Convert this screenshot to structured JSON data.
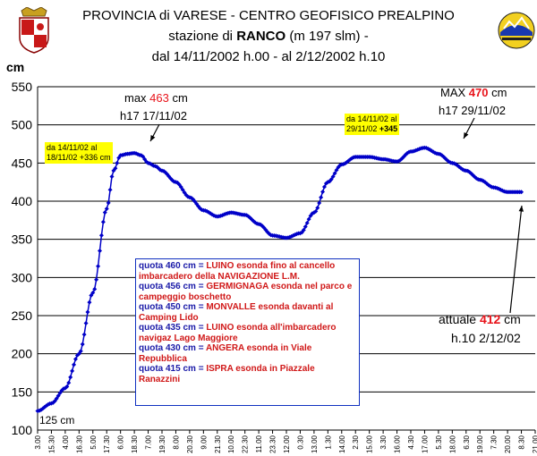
{
  "header": {
    "line1": "PROVINCIA di VARESE   -   CENTRO GEOFISICO PREALPINO",
    "line2_pre": "stazione di ",
    "line2_station": "RANCO",
    "line2_post": " (m 197 slm) -",
    "line3": "dal 14/11/2002 h.00 - al 2/12/2002 h.10"
  },
  "chart_data": {
    "type": "line",
    "ylabel": "cm",
    "ylim": [
      100,
      550
    ],
    "yticks": [
      100,
      150,
      200,
      250,
      300,
      350,
      400,
      450,
      500,
      550
    ],
    "xtick_labels": [
      "3.00",
      "15.30",
      "4.00",
      "16.30",
      "5.00",
      "17.30",
      "6.00",
      "18.30",
      "7.00",
      "19.30",
      "8.00",
      "20.30",
      "9.00",
      "21.30",
      "10.00",
      "22.30",
      "11.00",
      "23.30",
      "12.00",
      "0.30",
      "13.00",
      "1.30",
      "14.00",
      "2.30",
      "15.00",
      "3.30",
      "16.00",
      "4.30",
      "17.00",
      "5.30",
      "18.00",
      "6.30",
      "19.00",
      "7.30",
      "20.00",
      "8.30",
      "21.00"
    ],
    "series": [
      {
        "x_index": [
          0,
          1,
          2,
          3,
          4,
          5,
          5.5,
          6,
          6.5,
          7,
          7.5,
          8,
          8.5,
          9,
          10,
          11,
          12,
          13,
          14,
          15,
          16,
          17,
          18,
          19,
          20,
          21,
          22,
          23,
          24,
          25,
          26,
          27,
          28,
          29,
          30,
          31,
          32,
          33,
          34,
          35
        ],
        "values": [
          125,
          135,
          155,
          200,
          280,
          390,
          440,
          460,
          462,
          463,
          460,
          450,
          446,
          440,
          425,
          405,
          388,
          380,
          385,
          382,
          370,
          355,
          352,
          358,
          385,
          425,
          448,
          458,
          458,
          455,
          452,
          465,
          470,
          462,
          450,
          440,
          428,
          418,
          412,
          412
        ]
      }
    ],
    "grid": true
  },
  "annotations": {
    "max1_pre": "max ",
    "max1_value": "463",
    "max1_post": " cm",
    "max1_time": "h17 17/11/02",
    "max2_pre": "MAX ",
    "max2_value": "470",
    "max2_post": " cm",
    "max2_time": "h17 29/11/02",
    "box1_line1": "da 14/11/02 al",
    "box1_line2": "18/11/02 +336 cm",
    "box2_line1": "da 14/11/02 al",
    "box2_line2_pre": "29/11/02 ",
    "box2_line2_bold": "+345",
    "start_label": "125 cm",
    "current_pre": "attuale ",
    "current_value": "412",
    "current_post": " cm",
    "current_time": "h.10 2/12/02"
  },
  "legend": [
    {
      "quota": "quota 460 cm = ",
      "text": "LUINO esonda fino al cancello imbarcadero della NAVIGAZIONE L.M."
    },
    {
      "quota": "quota 456 cm = ",
      "text": "GERMIGNAGA esonda nel parco e campeggio boschetto"
    },
    {
      "quota": "quota  450 cm = ",
      "text": "MONVALLE esonda davanti al Camping Lido"
    },
    {
      "quota": "quota  435 cm = ",
      "text": "LUINO esonda all'imbarcadero navigaz Lago Maggiore"
    },
    {
      "quota": "quota  430 cm = ",
      "text": "ANGERA esonda in Viale Repubblica"
    },
    {
      "quota": "quota 415 cm = ",
      "text": "ISPRA esonda in Piazzale Ranazzini"
    }
  ],
  "colors": {
    "series": "#0000c8",
    "highlight": "#ffff00",
    "red": "#e8141b",
    "legend_blue": "#1a1aa8"
  }
}
